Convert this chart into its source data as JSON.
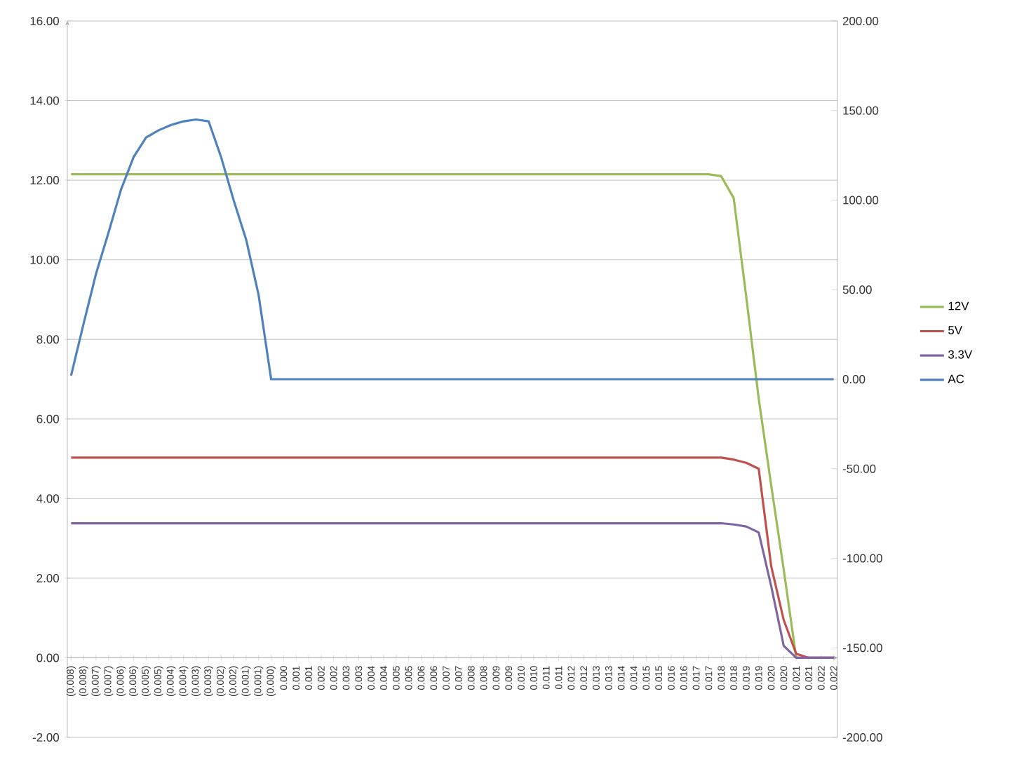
{
  "chart_data": {
    "type": "line",
    "categories": [
      "(0.008)",
      "(0.008)",
      "(0.007)",
      "(0.007)",
      "(0.006)",
      "(0.006)",
      "(0.005)",
      "(0.005)",
      "(0.004)",
      "(0.004)",
      "(0.003)",
      "(0.003)",
      "(0.002)",
      "(0.002)",
      "(0.001)",
      "(0.001)",
      "(0.000)",
      "0.000",
      "0.001",
      "0.001",
      "0.002",
      "0.002",
      "0.003",
      "0.003",
      "0.004",
      "0.004",
      "0.005",
      "0.005",
      "0.006",
      "0.006",
      "0.007",
      "0.007",
      "0.008",
      "0.008",
      "0.009",
      "0.009",
      "0.010",
      "0.010",
      "0.011",
      "0.011",
      "0.012",
      "0.012",
      "0.013",
      "0.013",
      "0.014",
      "0.014",
      "0.015",
      "0.015",
      "0.016",
      "0.016",
      "0.017",
      "0.017",
      "0.018",
      "0.018",
      "0.019",
      "0.019",
      "0.020",
      "0.020",
      "0.021",
      "0.021",
      "0.022",
      "0.022"
    ],
    "series": [
      {
        "name": "12V",
        "color": "#9bbb59",
        "values": [
          12.15,
          12.15,
          12.15,
          12.15,
          12.15,
          12.15,
          12.15,
          12.15,
          12.15,
          12.15,
          12.15,
          12.15,
          12.15,
          12.15,
          12.15,
          12.15,
          12.15,
          12.15,
          12.15,
          12.15,
          12.15,
          12.15,
          12.15,
          12.15,
          12.15,
          12.15,
          12.15,
          12.15,
          12.15,
          12.15,
          12.15,
          12.15,
          12.15,
          12.15,
          12.15,
          12.15,
          12.15,
          12.15,
          12.15,
          12.15,
          12.15,
          12.15,
          12.15,
          12.15,
          12.15,
          12.15,
          12.15,
          12.15,
          12.15,
          12.15,
          12.15,
          12.15,
          12.1,
          11.55,
          9.08,
          6.51,
          4.33,
          2.22,
          0,
          0,
          0,
          0
        ]
      },
      {
        "name": "5V",
        "color": "#c0504d",
        "values": [
          5.03,
          5.03,
          5.03,
          5.03,
          5.03,
          5.03,
          5.03,
          5.03,
          5.03,
          5.03,
          5.03,
          5.03,
          5.03,
          5.03,
          5.03,
          5.03,
          5.03,
          5.03,
          5.03,
          5.03,
          5.03,
          5.03,
          5.03,
          5.03,
          5.03,
          5.03,
          5.03,
          5.03,
          5.03,
          5.03,
          5.03,
          5.03,
          5.03,
          5.03,
          5.03,
          5.03,
          5.03,
          5.03,
          5.03,
          5.03,
          5.03,
          5.03,
          5.03,
          5.03,
          5.03,
          5.03,
          5.03,
          5.03,
          5.03,
          5.03,
          5.03,
          5.03,
          5.03,
          4.98,
          4.9,
          4.75,
          2.3,
          0.95,
          0.1,
          0,
          0,
          0
        ]
      },
      {
        "name": "3.3V",
        "color": "#8064a2",
        "values": [
          3.38,
          3.38,
          3.38,
          3.38,
          3.38,
          3.38,
          3.38,
          3.38,
          3.38,
          3.38,
          3.38,
          3.38,
          3.38,
          3.38,
          3.38,
          3.38,
          3.38,
          3.38,
          3.38,
          3.38,
          3.38,
          3.38,
          3.38,
          3.38,
          3.38,
          3.38,
          3.38,
          3.38,
          3.38,
          3.38,
          3.38,
          3.38,
          3.38,
          3.38,
          3.38,
          3.38,
          3.38,
          3.38,
          3.38,
          3.38,
          3.38,
          3.38,
          3.38,
          3.38,
          3.38,
          3.38,
          3.38,
          3.38,
          3.38,
          3.38,
          3.38,
          3.38,
          3.38,
          3.35,
          3.3,
          3.15,
          1.8,
          0.3,
          0,
          0,
          0,
          0
        ]
      },
      {
        "name": "AC",
        "color": "#4f81bd",
        "axis": "y2",
        "values": [
          2,
          31,
          59,
          82,
          106,
          124,
          135,
          139,
          142,
          144,
          145,
          144,
          124,
          100,
          78,
          47,
          0,
          0,
          0,
          0,
          0,
          0,
          0,
          0,
          0,
          0,
          0,
          0,
          0,
          0,
          0,
          0,
          0,
          0,
          0,
          0,
          0,
          0,
          0,
          0,
          0,
          0,
          0,
          0,
          0,
          0,
          0,
          0,
          0,
          0,
          0,
          0,
          0,
          0,
          0,
          0,
          0,
          0,
          0,
          0,
          0,
          0
        ]
      }
    ],
    "ylim": [
      -2,
      16
    ],
    "yticks": [
      {
        "value": -2,
        "label": "-2.00"
      },
      {
        "value": 0,
        "label": "0.00"
      },
      {
        "value": 2,
        "label": "2.00"
      },
      {
        "value": 4,
        "label": "4.00"
      },
      {
        "value": 6,
        "label": "6.00"
      },
      {
        "value": 8,
        "label": "8.00"
      },
      {
        "value": 10,
        "label": "10.00"
      },
      {
        "value": 12,
        "label": "12.00"
      },
      {
        "value": 14,
        "label": "14.00"
      },
      {
        "value": 16,
        "label": "16.00"
      }
    ],
    "y2lim": [
      -200,
      200
    ],
    "y2ticks": [
      {
        "value": -200,
        "label": "-200.00"
      },
      {
        "value": -150,
        "label": "-150.00"
      },
      {
        "value": -100,
        "label": "-100.00"
      },
      {
        "value": -50,
        "label": "-50.00"
      },
      {
        "value": 0,
        "label": "0.00"
      },
      {
        "value": 50,
        "label": "50.00"
      },
      {
        "value": 100,
        "label": "100.00"
      },
      {
        "value": 150,
        "label": "150.00"
      },
      {
        "value": 200,
        "label": "200.00"
      }
    ],
    "grid": "y",
    "legend": "right"
  }
}
